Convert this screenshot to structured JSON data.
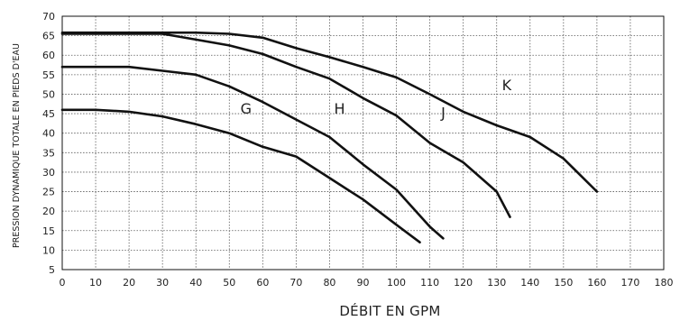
{
  "chart_data": {
    "type": "line",
    "title": "",
    "xlabel": "DÉBIT EN GPM",
    "ylabel": "PRESSION DYNAMIQUE TOTALE EN PIEDS D'EAU",
    "xlim": [
      0,
      180
    ],
    "ylim": [
      5,
      70
    ],
    "x_ticks": [
      "0",
      "10",
      "20",
      "30",
      "40",
      "50",
      "60",
      "70",
      "80",
      "90",
      "100",
      "110",
      "120",
      "130",
      "140",
      "150",
      "160",
      "170",
      "180"
    ],
    "y_ticks": [
      "5",
      "10",
      "15",
      "20",
      "25",
      "30",
      "35",
      "40",
      "45",
      "50",
      "55",
      "60",
      "65",
      "70"
    ],
    "grid": true,
    "series": [
      {
        "name": "G",
        "points": [
          [
            0,
            46
          ],
          [
            10,
            46
          ],
          [
            20,
            45.5
          ],
          [
            30,
            44.3
          ],
          [
            40,
            42.3
          ],
          [
            50,
            40
          ],
          [
            60,
            36.5
          ],
          [
            70,
            34
          ],
          [
            80,
            28.5
          ],
          [
            90,
            23
          ],
          [
            100,
            16.5
          ],
          [
            107,
            12
          ]
        ]
      },
      {
        "name": "H",
        "points": [
          [
            0,
            57
          ],
          [
            10,
            57
          ],
          [
            20,
            57
          ],
          [
            30,
            56
          ],
          [
            40,
            55
          ],
          [
            50,
            52
          ],
          [
            60,
            48
          ],
          [
            70,
            43.5
          ],
          [
            80,
            39
          ],
          [
            90,
            32
          ],
          [
            100,
            25.5
          ],
          [
            110,
            16
          ],
          [
            114,
            13
          ]
        ]
      },
      {
        "name": "J",
        "points": [
          [
            0,
            65.5
          ],
          [
            10,
            65.5
          ],
          [
            20,
            65.5
          ],
          [
            30,
            65.5
          ],
          [
            40,
            64
          ],
          [
            50,
            62.5
          ],
          [
            60,
            60.3
          ],
          [
            70,
            57
          ],
          [
            80,
            54
          ],
          [
            90,
            49
          ],
          [
            100,
            44.5
          ],
          [
            110,
            37.5
          ],
          [
            120,
            32.5
          ],
          [
            130,
            25
          ],
          [
            134,
            18.5
          ]
        ]
      },
      {
        "name": "K",
        "points": [
          [
            0,
            65.8
          ],
          [
            10,
            65.8
          ],
          [
            20,
            65.8
          ],
          [
            30,
            65.8
          ],
          [
            40,
            65.8
          ],
          [
            50,
            65.5
          ],
          [
            60,
            64.5
          ],
          [
            70,
            61.8
          ],
          [
            80,
            59.5
          ],
          [
            90,
            57
          ],
          [
            100,
            54.3
          ],
          [
            110,
            50
          ],
          [
            120,
            45.5
          ],
          [
            130,
            42
          ],
          [
            140,
            39
          ],
          [
            150,
            33.5
          ],
          [
            160,
            25
          ]
        ]
      }
    ],
    "annotations": [
      {
        "text": "G",
        "x": 55,
        "y": 45
      },
      {
        "text": "H",
        "x": 83,
        "y": 45
      },
      {
        "text": "J",
        "x": 114,
        "y": 44
      },
      {
        "text": "K",
        "x": 133,
        "y": 51
      }
    ]
  }
}
